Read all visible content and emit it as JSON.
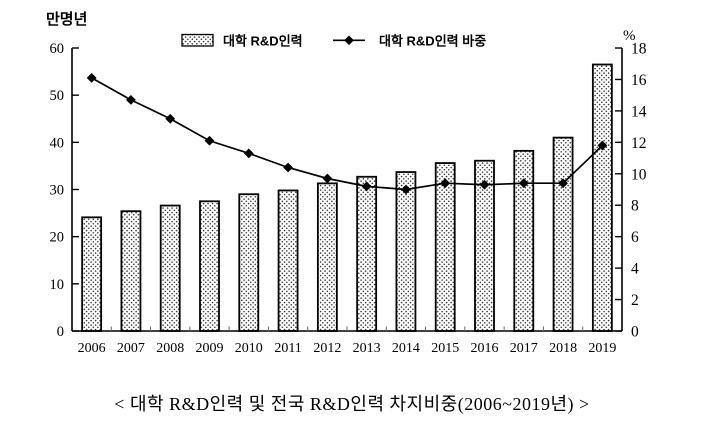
{
  "chart": {
    "unit_left": "만명년",
    "unit_right": "%",
    "legend": {
      "bar_label": "대학 R&D인력",
      "line_label": "대학 R&D인력 바중"
    },
    "caption": "< 대학 R&D인력 및 전국 R&D인력 차지비중(2006~2019년) >"
  },
  "chart_data": {
    "type": "bar+line",
    "title": "",
    "caption": "< 대학 R&D인력 및 전국 R&D인력 차지비중(2006~2019년) >",
    "categories": [
      "2006",
      "2007",
      "2008",
      "2009",
      "2010",
      "2011",
      "2012",
      "2013",
      "2014",
      "2015",
      "2016",
      "2017",
      "2018",
      "2019"
    ],
    "series": [
      {
        "name": "대학 R&D인력",
        "chart_type": "bar",
        "axis": "left",
        "unit": "만명년",
        "values": [
          24.1,
          25.4,
          26.6,
          27.5,
          29.0,
          29.8,
          31.3,
          32.7,
          33.7,
          35.6,
          36.1,
          38.2,
          41.0,
          56.5
        ]
      },
      {
        "name": "대학 R&D인력 바중",
        "chart_type": "line",
        "axis": "right",
        "unit": "%",
        "marker": "diamond",
        "values": [
          16.1,
          14.7,
          13.5,
          12.1,
          11.3,
          10.4,
          9.7,
          9.2,
          9.0,
          9.4,
          9.3,
          9.4,
          9.4,
          11.8
        ]
      }
    ],
    "left_axis": {
      "label": "만명년",
      "min": 0,
      "max": 60,
      "step": 10
    },
    "right_axis": {
      "label": "%",
      "min": 0,
      "max": 18,
      "step": 2
    },
    "legend_position": "top-center",
    "grid": false,
    "colors": {
      "bar_fill": "#ffffff",
      "bar_dot": "#3a3a3a",
      "bar_border": "#000000",
      "line": "#000000",
      "marker": "#000000",
      "axis": "#000000",
      "boundary_tick": "#666666",
      "text": "#000000"
    }
  }
}
